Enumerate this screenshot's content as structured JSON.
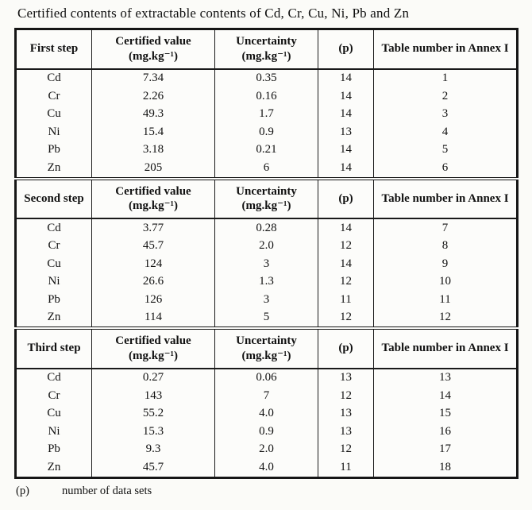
{
  "title": "Certified contents of extractable contents of Cd, Cr, Cu, Ni, Pb and Zn",
  "columns": {
    "certified_line1": "Certified value",
    "certified_line2": "(mg.kg⁻¹)",
    "uncertainty_line1": "Uncertainty",
    "uncertainty_line2": "(mg.kg⁻¹)",
    "p": "(p)",
    "annex": "Table number in Annex I"
  },
  "sections": [
    {
      "step": "First step",
      "rows": [
        {
          "element": "Cd",
          "certified_value": "7.34",
          "uncertainty": "0.35",
          "p": "14",
          "annex_table": "1"
        },
        {
          "element": "Cr",
          "certified_value": "2.26",
          "uncertainty": "0.16",
          "p": "14",
          "annex_table": "2"
        },
        {
          "element": "Cu",
          "certified_value": "49.3",
          "uncertainty": "1.7",
          "p": "14",
          "annex_table": "3"
        },
        {
          "element": "Ni",
          "certified_value": "15.4",
          "uncertainty": "0.9",
          "p": "13",
          "annex_table": "4"
        },
        {
          "element": "Pb",
          "certified_value": "3.18",
          "uncertainty": "0.21",
          "p": "14",
          "annex_table": "5"
        },
        {
          "element": "Zn",
          "certified_value": "205",
          "uncertainty": "6",
          "p": "14",
          "annex_table": "6"
        }
      ]
    },
    {
      "step": "Second step",
      "rows": [
        {
          "element": "Cd",
          "certified_value": "3.77",
          "uncertainty": "0.28",
          "p": "14",
          "annex_table": "7"
        },
        {
          "element": "Cr",
          "certified_value": "45.7",
          "uncertainty": "2.0",
          "p": "12",
          "annex_table": "8"
        },
        {
          "element": "Cu",
          "certified_value": "124",
          "uncertainty": "3",
          "p": "14",
          "annex_table": "9"
        },
        {
          "element": "Ni",
          "certified_value": "26.6",
          "uncertainty": "1.3",
          "p": "12",
          "annex_table": "10"
        },
        {
          "element": "Pb",
          "certified_value": "126",
          "uncertainty": "3",
          "p": "11",
          "annex_table": "11"
        },
        {
          "element": "Zn",
          "certified_value": "114",
          "uncertainty": "5",
          "p": "12",
          "annex_table": "12"
        }
      ]
    },
    {
      "step": "Third step",
      "rows": [
        {
          "element": "Cd",
          "certified_value": "0.27",
          "uncertainty": "0.06",
          "p": "13",
          "annex_table": "13"
        },
        {
          "element": "Cr",
          "certified_value": "143",
          "uncertainty": "7",
          "p": "12",
          "annex_table": "14"
        },
        {
          "element": "Cu",
          "certified_value": "55.2",
          "uncertainty": "4.0",
          "p": "13",
          "annex_table": "15"
        },
        {
          "element": "Ni",
          "certified_value": "15.3",
          "uncertainty": "0.9",
          "p": "13",
          "annex_table": "16"
        },
        {
          "element": "Pb",
          "certified_value": "9.3",
          "uncertainty": "2.0",
          "p": "12",
          "annex_table": "17"
        },
        {
          "element": "Zn",
          "certified_value": "45.7",
          "uncertainty": "4.0",
          "p": "11",
          "annex_table": "18"
        }
      ]
    }
  ],
  "footnote": {
    "symbol": "(p)",
    "text": "number of data sets"
  }
}
